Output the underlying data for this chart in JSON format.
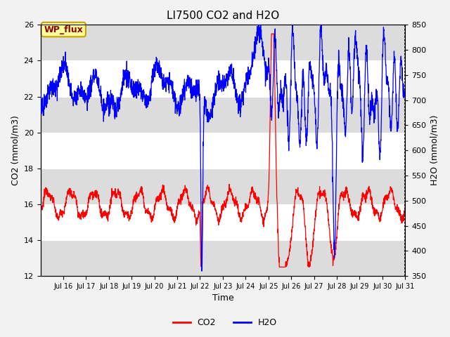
{
  "title": "LI7500 CO2 and H2O",
  "xlabel": "Time",
  "ylabel_left": "CO2 (mmol/m3)",
  "ylabel_right": "H2O (mmol/m3)",
  "ylim_left": [
    12,
    26
  ],
  "ylim_right": [
    350,
    850
  ],
  "yticks_left": [
    12,
    14,
    16,
    18,
    20,
    22,
    24,
    26
  ],
  "yticks_right": [
    350,
    400,
    450,
    500,
    550,
    600,
    650,
    700,
    750,
    800,
    850
  ],
  "xtick_labels": [
    "Jul 16",
    "Jul 17",
    "Jul 18",
    "Jul 19",
    "Jul 20",
    "Jul 21",
    "Jul 22",
    "Jul 23",
    "Jul 24",
    "Jul 25",
    "Jul 26",
    "Jul 27",
    "Jul 28",
    "Jul 29",
    "Jul 30",
    "Jul 31"
  ],
  "co2_color": "#FF0000",
  "h2o_color": "#0000FF",
  "annotation_text": "WP_flux",
  "annotation_bg": "#FFFF99",
  "annotation_border": "#C8A000",
  "annotation_text_color": "#8B0000",
  "band_color": "#DCDCDC",
  "fig_bg": "#F2F2F2",
  "plot_bg": "#FFFFFF",
  "title_fontsize": 11,
  "axis_fontsize": 9,
  "tick_fontsize": 8,
  "legend_fontsize": 9
}
